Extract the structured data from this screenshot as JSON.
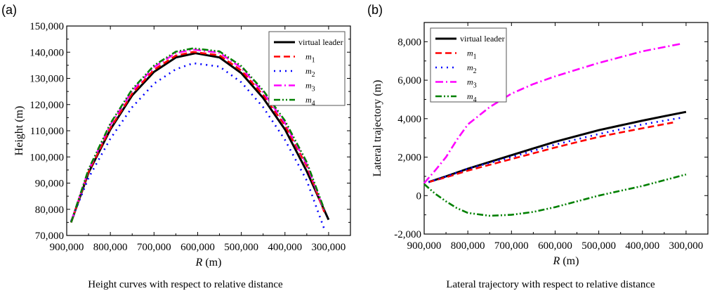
{
  "chart_data": [
    {
      "type": "line",
      "panel_label": "(a)",
      "title": "Height curves with respect to relative distance",
      "xlabel_italic": "R",
      "xlabel_unit": " (m)",
      "ylabel": "Height (m)",
      "xlim": [
        900000,
        250000
      ],
      "ylim": [
        70000,
        150000
      ],
      "x_reversed": true,
      "xticks": [
        900000,
        800000,
        700000,
        600000,
        500000,
        400000,
        300000
      ],
      "xtick_labels": [
        "900,000",
        "800,000",
        "700,000",
        "600,000",
        "500,000",
        "400,000",
        "300,000"
      ],
      "yticks": [
        70000,
        80000,
        90000,
        100000,
        110000,
        120000,
        130000,
        140000,
        150000
      ],
      "ytick_labels": [
        "70,000",
        "80,000",
        "90,000",
        "100,000",
        "110,000",
        "120,000",
        "130,000",
        "140,000",
        "150,000"
      ],
      "legend_position": "top-right",
      "grid": false,
      "series": [
        {
          "name": "virtual leader",
          "color": "#000000",
          "style": "solid",
          "x": [
            890000,
            850000,
            800000,
            750000,
            700000,
            650000,
            605000,
            550000,
            500000,
            450000,
            400000,
            350000,
            300000
          ],
          "y": [
            75000,
            94000,
            110500,
            123500,
            132500,
            138000,
            139600,
            138000,
            132000,
            122500,
            110500,
            94500,
            76000
          ]
        },
        {
          "name": "m1",
          "color": "#ff0000",
          "style": "dash",
          "x": [
            890000,
            850000,
            800000,
            750000,
            700000,
            650000,
            610000,
            550000,
            500000,
            450000,
            400000,
            350000,
            310000
          ],
          "y": [
            75000,
            94300,
            111000,
            124200,
            133300,
            138700,
            140100,
            138800,
            133000,
            123700,
            112000,
            96500,
            79000
          ]
        },
        {
          "name": "m2",
          "color": "#0000ff",
          "style": "dot",
          "x": [
            890000,
            850000,
            800000,
            750000,
            700000,
            650000,
            610000,
            550000,
            500000,
            450000,
            400000,
            350000,
            310000
          ],
          "y": [
            75500,
            92000,
            107000,
            119000,
            128000,
            133500,
            135800,
            134500,
            128500,
            119000,
            106500,
            91000,
            72500
          ]
        },
        {
          "name": "m3",
          "color": "#ff00ff",
          "style": "dashdot",
          "x": [
            890000,
            850000,
            800000,
            750000,
            700000,
            650000,
            610000,
            550000,
            500000,
            450000,
            400000,
            350000,
            310000
          ],
          "y": [
            75200,
            95000,
            112300,
            125200,
            134300,
            139700,
            141000,
            139800,
            134000,
            124700,
            113000,
            97200,
            79500
          ]
        },
        {
          "name": "m4",
          "color": "#008000",
          "style": "dashdotdot",
          "x": [
            890000,
            850000,
            800000,
            750000,
            700000,
            650000,
            610000,
            550000,
            500000,
            450000,
            400000,
            350000,
            310000
          ],
          "y": [
            75000,
            95300,
            112800,
            125800,
            134900,
            140200,
            141500,
            140300,
            134700,
            125400,
            113800,
            98000,
            80000
          ]
        }
      ]
    },
    {
      "type": "line",
      "panel_label": "(b)",
      "title": "Lateral trajectory with respect to relative distance",
      "xlabel_italic": "R",
      "xlabel_unit": " (m)",
      "ylabel": "Lateral trajectory (m)",
      "xlim": [
        900000,
        250000
      ],
      "ylim": [
        -2000,
        9000
      ],
      "x_reversed": true,
      "xticks": [
        900000,
        800000,
        700000,
        600000,
        500000,
        400000,
        300000
      ],
      "xtick_labels": [
        "900,000",
        "800,000",
        "700,000",
        "600,000",
        "500,000",
        "400,000",
        "300,000"
      ],
      "yticks": [
        -2000,
        0,
        2000,
        4000,
        6000,
        8000
      ],
      "ytick_labels": [
        "-2,000",
        "0",
        "2,000",
        "4,000",
        "6,000",
        "8,000"
      ],
      "legend_position": "top-left",
      "grid": false,
      "series": [
        {
          "name": "virtual leader",
          "color": "#000000",
          "style": "solid",
          "x": [
            890000,
            850000,
            800000,
            750000,
            700000,
            650000,
            600000,
            550000,
            500000,
            450000,
            400000,
            350000,
            300000
          ],
          "y": [
            700,
            1000,
            1400,
            1750,
            2100,
            2450,
            2800,
            3100,
            3400,
            3650,
            3900,
            4130,
            4350
          ]
        },
        {
          "name": "m1",
          "color": "#ff0000",
          "style": "dash",
          "x": [
            890000,
            850000,
            800000,
            750000,
            700000,
            650000,
            600000,
            550000,
            500000,
            450000,
            400000,
            330000
          ],
          "y": [
            700,
            950,
            1300,
            1600,
            1900,
            2200,
            2500,
            2780,
            3050,
            3280,
            3500,
            3800
          ]
        },
        {
          "name": "m2",
          "color": "#0000ff",
          "style": "dot",
          "x": [
            890000,
            850000,
            800000,
            750000,
            700000,
            650000,
            600000,
            550000,
            500000,
            450000,
            400000,
            310000
          ],
          "y": [
            700,
            1000,
            1400,
            1700,
            2000,
            2330,
            2650,
            2930,
            3200,
            3450,
            3700,
            4050
          ]
        },
        {
          "name": "m3",
          "color": "#ff00ff",
          "style": "dashdot",
          "x": [
            900000,
            875000,
            850000,
            825000,
            800000,
            750000,
            700000,
            650000,
            600000,
            550000,
            500000,
            450000,
            400000,
            310000
          ],
          "y": [
            650,
            1300,
            2000,
            2900,
            3700,
            4600,
            5300,
            5800,
            6200,
            6550,
            6900,
            7200,
            7500,
            7900
          ]
        },
        {
          "name": "m4",
          "color": "#008000",
          "style": "dashdotdot",
          "x": [
            900000,
            875000,
            850000,
            825000,
            800000,
            750000,
            700000,
            650000,
            600000,
            550000,
            500000,
            450000,
            400000,
            350000,
            300000
          ],
          "y": [
            600,
            100,
            -300,
            -650,
            -900,
            -1050,
            -1000,
            -850,
            -600,
            -300,
            0,
            250,
            500,
            800,
            1100
          ]
        }
      ]
    }
  ]
}
